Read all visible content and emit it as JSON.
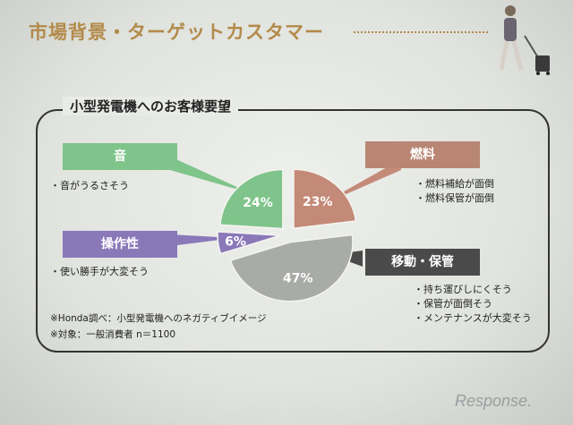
{
  "slide": {
    "title": "市場背景・ターゲットカスタマー",
    "section_title": "小型発電機へのお客様要望"
  },
  "chart_data": {
    "type": "pie",
    "title": "小型発電機へのお客様要望",
    "categories": [
      "燃料",
      "移動・保管",
      "操作性",
      "音"
    ],
    "values": [
      23,
      47,
      6,
      24
    ],
    "value_labels": [
      "23%",
      "47%",
      "6%",
      "24%"
    ],
    "colors": [
      "#c48a78",
      "#a8aba7",
      "#8a78b8",
      "#7fc48a"
    ],
    "legend": "callouts",
    "callouts": [
      {
        "label": "音",
        "notes": [
          "・音がうるさそう"
        ]
      },
      {
        "label": "燃料",
        "notes": [
          "・燃料補給が面倒",
          "・燃料保管が面倒"
        ]
      },
      {
        "label": "操作性",
        "notes": [
          "・使い勝手が大変そう"
        ]
      },
      {
        "label": "移動・保管",
        "notes": [
          "・持ち運びしにくそう",
          "・保管が面倒そう",
          "・メンテナンスが大変そう"
        ]
      }
    ],
    "footnotes": [
      "※Honda調べ：小型発電機へのネガティブイメージ",
      "※対象：一般消費者 n＝1100"
    ]
  },
  "colors": {
    "title": "#b38a4a",
    "box_sound": "#7fc48a",
    "box_fuel": "#b98674",
    "box_operation": "#8a78b8",
    "box_move": "#4a4a4a"
  },
  "watermark": "Response."
}
